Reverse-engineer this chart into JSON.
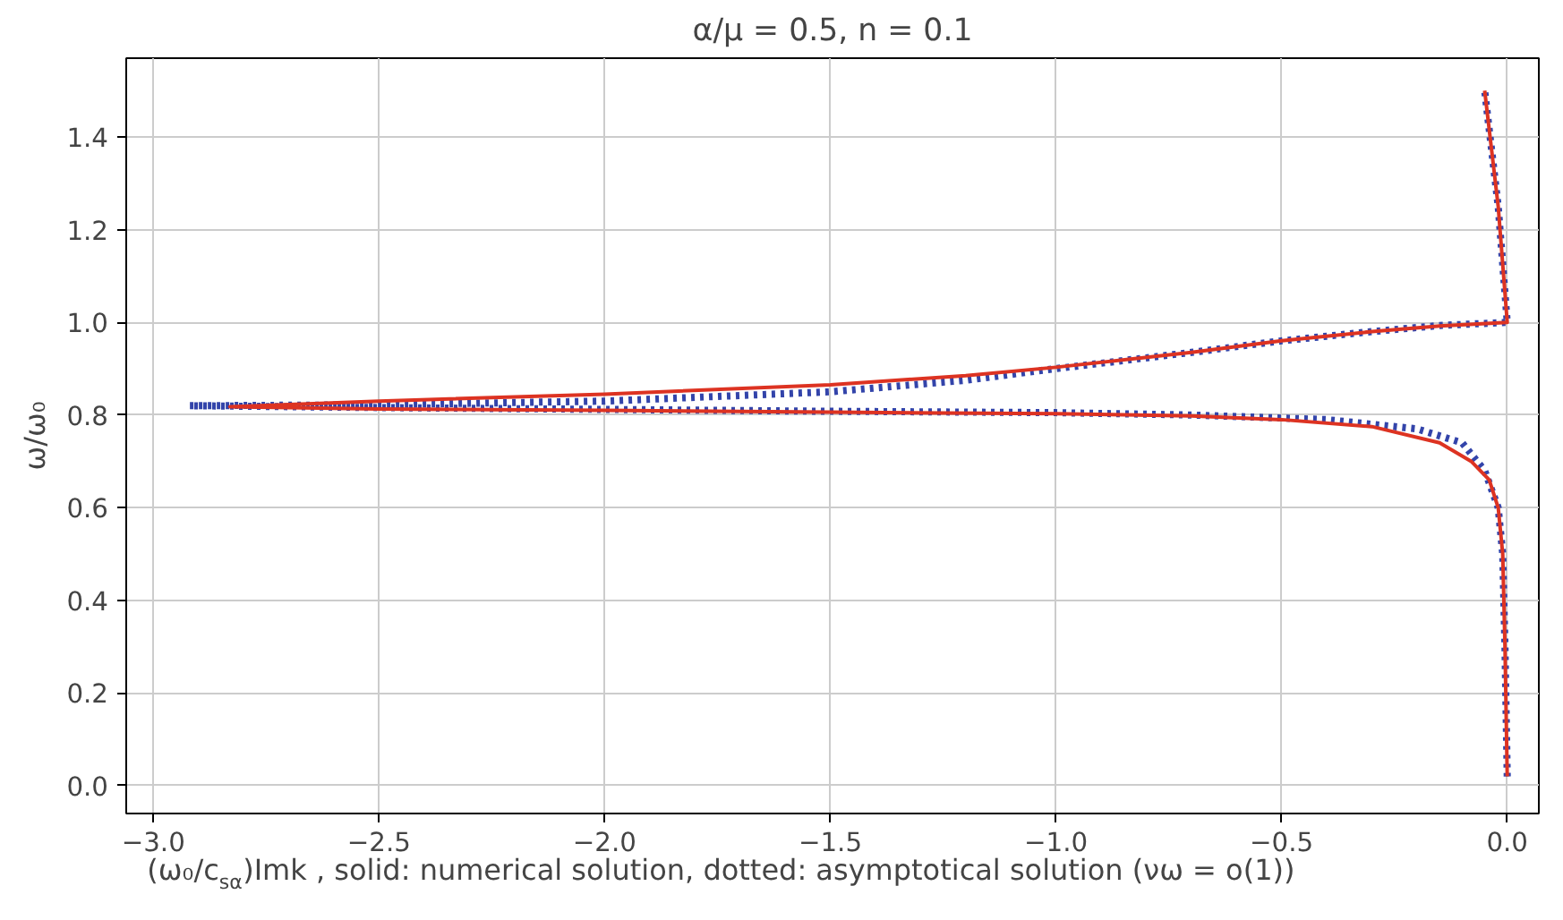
{
  "chart_data": {
    "type": "line",
    "title": "α/μ = 0.5, n = 0.1",
    "xlabel": "(ω₀/c$_{sα}$)Imk , solid: numerical solution, dotted: asymptotical solution (νω = o(1))",
    "ylabel": "ω/ω₀",
    "xlim": [
      -3.06,
      0.07
    ],
    "ylim": [
      -0.06,
      1.57
    ],
    "xticks": [
      {
        "value": -3.0,
        "label": "−3.0"
      },
      {
        "value": -2.5,
        "label": "−2.5"
      },
      {
        "value": -2.0,
        "label": "−2.0"
      },
      {
        "value": -1.5,
        "label": "−1.5"
      },
      {
        "value": -1.0,
        "label": "−1.0"
      },
      {
        "value": -0.5,
        "label": "−0.5"
      },
      {
        "value": 0.0,
        "label": "0.0"
      }
    ],
    "yticks": [
      {
        "value": 0.0,
        "label": "0.0"
      },
      {
        "value": 0.2,
        "label": "0.2"
      },
      {
        "value": 0.4,
        "label": "0.4"
      },
      {
        "value": 0.6,
        "label": "0.6"
      },
      {
        "value": 0.8,
        "label": "0.8"
      },
      {
        "value": 1.0,
        "label": "1.0"
      },
      {
        "value": 1.2,
        "label": "1.2"
      },
      {
        "value": 1.4,
        "label": "1.4"
      }
    ],
    "grid": true,
    "series": [
      {
        "color": "#3344aa",
        "line_style": "dotted",
        "x": [
          0.0,
          -0.005,
          -0.01,
          -0.02,
          -0.05,
          -0.1,
          -0.2,
          -0.4,
          -0.7,
          -1.0,
          -1.5,
          -2.0,
          -2.5,
          -2.92,
          -2.5,
          -2.0,
          -1.5,
          -1.2,
          -1.0,
          -0.7,
          -0.5,
          -0.3,
          -0.15,
          0.0,
          -0.02,
          -0.05
        ],
        "values": [
          0.02,
          0.3,
          0.5,
          0.6,
          0.68,
          0.74,
          0.77,
          0.79,
          0.8,
          0.805,
          0.808,
          0.812,
          0.816,
          0.82,
          0.822,
          0.83,
          0.85,
          0.875,
          0.9,
          0.935,
          0.96,
          0.98,
          0.993,
          1.0,
          1.25,
          1.5
        ]
      },
      {
        "color": "#dd3322",
        "line_style": "solid",
        "x": [
          0.0,
          -0.005,
          -0.01,
          -0.02,
          -0.04,
          -0.08,
          -0.15,
          -0.3,
          -0.5,
          -0.7,
          -1.0,
          -1.5,
          -2.0,
          -2.5,
          -2.83,
          -2.5,
          -2.0,
          -1.5,
          -1.2,
          -1.0,
          -0.7,
          -0.5,
          -0.3,
          -0.15,
          0.0,
          -0.02,
          -0.05
        ],
        "values": [
          0.02,
          0.3,
          0.5,
          0.6,
          0.66,
          0.7,
          0.74,
          0.775,
          0.79,
          0.798,
          0.803,
          0.806,
          0.81,
          0.813,
          0.818,
          0.83,
          0.845,
          0.865,
          0.885,
          0.903,
          0.935,
          0.96,
          0.98,
          0.992,
          1.0,
          1.25,
          1.5
        ]
      }
    ]
  }
}
